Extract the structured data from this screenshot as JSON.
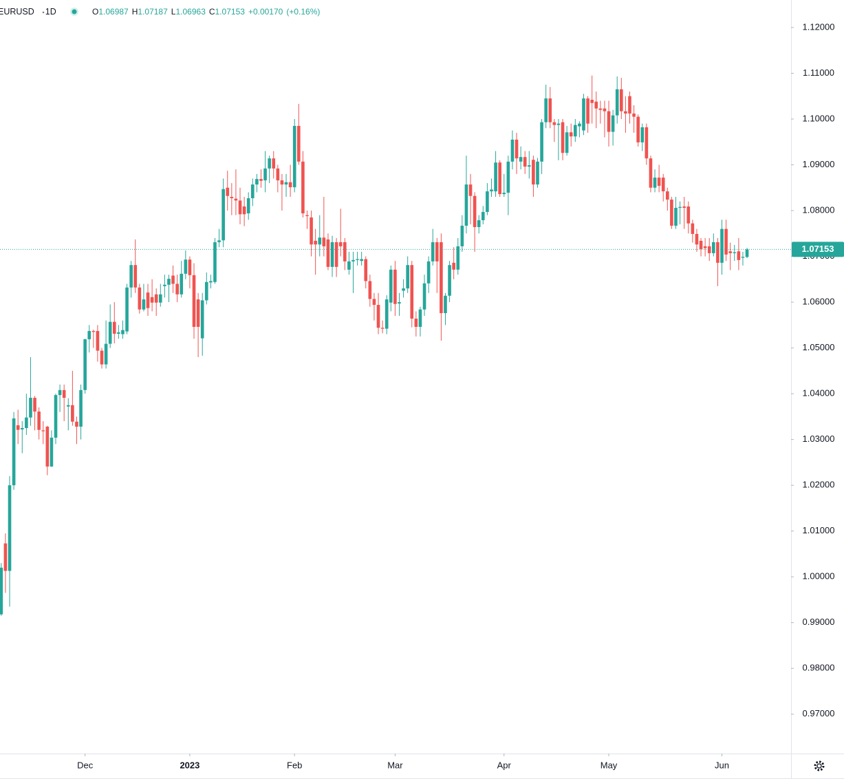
{
  "chart_data": {
    "type": "candlestick",
    "legend": {
      "symbol": "EURUSD",
      "interval": "1D",
      "labels": [
        "O",
        "H",
        "L",
        "C"
      ],
      "values": [
        "1.06987",
        "1.07187",
        "1.06963",
        "1.07153"
      ],
      "change": "+0.00170",
      "change_pct": "(+0.16%)"
    },
    "up_color": "#26a69a",
    "down_color": "#ef5350",
    "last_price": {
      "value": 1.07153,
      "label": "1.07153"
    },
    "ylim": [
      0.9614,
      1.126
    ],
    "yticks": [
      {
        "value": 0.97,
        "label": "0.97000"
      },
      {
        "value": 0.98,
        "label": "0.98000"
      },
      {
        "value": 0.99,
        "label": "0.99000"
      },
      {
        "value": 1.0,
        "label": "1.00000"
      },
      {
        "value": 1.01,
        "label": "1.01000"
      },
      {
        "value": 1.02,
        "label": "1.02000"
      },
      {
        "value": 1.03,
        "label": "1.03000"
      },
      {
        "value": 1.04,
        "label": "1.04000"
      },
      {
        "value": 1.05,
        "label": "1.05000"
      },
      {
        "value": 1.06,
        "label": "1.06000"
      },
      {
        "value": 1.07,
        "label": "1.07000"
      },
      {
        "value": 1.08,
        "label": "1.08000"
      },
      {
        "value": 1.09,
        "label": "1.09000"
      },
      {
        "value": 1.1,
        "label": "1.10000"
      },
      {
        "value": 1.11,
        "label": "1.11000"
      },
      {
        "value": 1.12,
        "label": "1.12000"
      }
    ],
    "xlim": [
      -0.3,
      188.5
    ],
    "xticks": [
      {
        "value": 20,
        "label": "Dec"
      },
      {
        "value": 45,
        "label": "2023"
      },
      {
        "value": 70,
        "label": "Feb"
      },
      {
        "value": 94,
        "label": "Mar"
      },
      {
        "value": 120,
        "label": "Apr"
      },
      {
        "value": 145,
        "label": "May"
      },
      {
        "value": 172,
        "label": "Jun"
      }
    ],
    "candles": [
      [
        0.9918,
        1.003,
        0.9915,
        1.002
      ],
      [
        1.0073,
        1.0095,
        0.9965,
        1.0013
      ],
      [
        1.0013,
        1.022,
        0.9935,
        1.02
      ],
      [
        1.02,
        1.036,
        1.019,
        1.0346
      ],
      [
        1.0331,
        1.0365,
        1.029,
        1.0321
      ],
      [
        1.0322,
        1.034,
        1.027,
        1.0325
      ],
      [
        1.0325,
        1.04,
        1.031,
        1.0348
      ],
      [
        1.0348,
        1.048,
        1.033,
        1.0391
      ],
      [
        1.0391,
        1.0395,
        1.032,
        1.0361
      ],
      [
        1.0361,
        1.037,
        1.03,
        1.0321
      ],
      [
        1.032,
        1.034,
        1.029,
        1.0318
      ],
      [
        1.0328,
        1.033,
        1.0222,
        1.0241
      ],
      [
        1.0241,
        1.032,
        1.024,
        1.0304
      ],
      [
        1.0304,
        1.04,
        1.029,
        1.0397
      ],
      [
        1.0397,
        1.042,
        1.036,
        1.0408
      ],
      [
        1.0408,
        1.042,
        1.034,
        1.0391
      ],
      [
        1.0372,
        1.039,
        1.032,
        1.0375
      ],
      [
        1.0375,
        1.045,
        1.033,
        1.0339
      ],
      [
        1.0339,
        1.035,
        1.029,
        1.0328
      ],
      [
        1.0328,
        1.042,
        1.03,
        1.0408
      ],
      [
        1.0408,
        1.052,
        1.04,
        1.0519
      ],
      [
        1.0519,
        1.055,
        1.049,
        1.0537
      ],
      [
        1.0537,
        1.054,
        1.05,
        1.0535
      ],
      [
        1.0537,
        1.055,
        1.047,
        1.0494
      ],
      [
        1.0494,
        1.05,
        1.0455,
        1.0464
      ],
      [
        1.0464,
        1.056,
        1.0455,
        1.0509
      ],
      [
        1.0509,
        1.0595,
        1.05,
        1.0557
      ],
      [
        1.0557,
        1.06,
        1.051,
        1.0531
      ],
      [
        1.0531,
        1.055,
        1.052,
        1.0534
      ],
      [
        1.053,
        1.056,
        1.052,
        1.0539
      ],
      [
        1.0536,
        1.064,
        1.053,
        1.0632
      ],
      [
        1.0632,
        1.069,
        1.061,
        1.0681
      ],
      [
        1.0681,
        1.0737,
        1.062,
        1.0632
      ],
      [
        1.0632,
        1.064,
        1.0575,
        1.0584
      ],
      [
        1.0584,
        1.064,
        1.058,
        1.0606
      ],
      [
        1.0621,
        1.064,
        1.057,
        1.0587
      ],
      [
        1.0611,
        1.065,
        1.058,
        1.0599
      ],
      [
        1.0617,
        1.063,
        1.057,
        1.0599
      ],
      [
        1.0599,
        1.064,
        1.059,
        1.0617
      ],
      [
        1.0635,
        1.066,
        1.061,
        1.0638
      ],
      [
        1.0638,
        1.066,
        1.06,
        1.0651
      ],
      [
        1.0658,
        1.068,
        1.062,
        1.064
      ],
      [
        1.064,
        1.066,
        1.06,
        1.0617
      ],
      [
        1.0617,
        1.069,
        1.061,
        1.0662
      ],
      [
        1.0662,
        1.0713,
        1.065,
        1.0693
      ],
      [
        1.0693,
        1.07,
        1.063,
        1.0659
      ],
      [
        1.0659,
        1.0685,
        1.052,
        1.0546
      ],
      [
        1.0606,
        1.062,
        1.048,
        1.0546
      ],
      [
        1.0521,
        1.062,
        1.0483,
        1.0604
      ],
      [
        1.0604,
        1.0665,
        1.0595,
        1.0644
      ],
      [
        1.0643,
        1.066,
        1.063,
        1.0646
      ],
      [
        1.0644,
        1.074,
        1.064,
        1.0731
      ],
      [
        1.0731,
        1.076,
        1.072,
        1.0735
      ],
      [
        1.0735,
        1.087,
        1.072,
        1.0847
      ],
      [
        1.085,
        1.0887,
        1.08,
        1.0832
      ],
      [
        1.083,
        1.086,
        1.079,
        1.0827
      ],
      [
        1.0826,
        1.089,
        1.079,
        1.0822
      ],
      [
        1.0822,
        1.085,
        1.077,
        1.0792
      ],
      [
        1.0809,
        1.083,
        1.0766,
        1.0792
      ],
      [
        1.0794,
        1.084,
        1.078,
        1.0827
      ],
      [
        1.0827,
        1.087,
        1.081,
        1.0857
      ],
      [
        1.0857,
        1.088,
        1.084,
        1.0869
      ],
      [
        1.0869,
        1.089,
        1.085,
        1.0865
      ],
      [
        1.0866,
        1.093,
        1.084,
        1.0892
      ],
      [
        1.0892,
        1.092,
        1.086,
        1.0914
      ],
      [
        1.0914,
        1.093,
        1.087,
        1.0892
      ],
      [
        1.0892,
        1.09,
        1.084,
        1.0866
      ],
      [
        1.0866,
        1.088,
        1.08,
        1.0857
      ],
      [
        1.0857,
        1.088,
        1.083,
        1.0862
      ],
      [
        1.0862,
        1.09,
        1.083,
        1.0851
      ],
      [
        1.0851,
        1.1,
        1.084,
        1.0985
      ],
      [
        1.0985,
        1.1033,
        1.09,
        1.0907
      ],
      [
        1.0907,
        1.093,
        1.0785,
        1.0794
      ],
      [
        1.079,
        1.08,
        1.076,
        1.0788
      ],
      [
        1.0785,
        1.08,
        1.07,
        1.0726
      ],
      [
        1.0734,
        1.076,
        1.066,
        1.0726
      ],
      [
        1.0726,
        1.079,
        1.07,
        1.0741
      ],
      [
        1.0741,
        1.083,
        1.07,
        1.0722
      ],
      [
        1.0737,
        1.075,
        1.067,
        1.0677
      ],
      [
        1.0677,
        1.0745,
        1.0655,
        1.0731
      ],
      [
        1.0731,
        1.074,
        1.0655,
        1.0677
      ],
      [
        1.0731,
        1.0804,
        1.07,
        1.0722
      ],
      [
        1.0731,
        1.074,
        1.067,
        1.0689
      ],
      [
        1.0671,
        1.071,
        1.066,
        1.0689
      ],
      [
        1.0689,
        1.071,
        1.062,
        1.0692
      ],
      [
        1.0692,
        1.071,
        1.068,
        1.0694
      ],
      [
        1.069,
        1.071,
        1.068,
        1.0694
      ],
      [
        1.0694,
        1.07,
        1.063,
        1.0646
      ],
      [
        1.0646,
        1.066,
        1.059,
        1.0607
      ],
      [
        1.0607,
        1.062,
        1.056,
        1.0594
      ],
      [
        1.0594,
        1.062,
        1.053,
        1.0544
      ],
      [
        1.0544,
        1.056,
        1.0532,
        1.0542
      ],
      [
        1.0542,
        1.0615,
        1.053,
        1.0606
      ],
      [
        1.0599,
        1.068,
        1.058,
        1.0671
      ],
      [
        1.0671,
        1.069,
        1.057,
        1.0596
      ],
      [
        1.0597,
        1.062,
        1.057,
        1.06
      ],
      [
        1.0625,
        1.065,
        1.061,
        1.063
      ],
      [
        1.063,
        1.07,
        1.062,
        1.0681
      ],
      [
        1.0681,
        1.069,
        1.0545,
        1.0564
      ],
      [
        1.0564,
        1.058,
        1.0525,
        1.0546
      ],
      [
        1.0546,
        1.059,
        1.0525,
        1.0584
      ],
      [
        1.0584,
        1.066,
        1.057,
        1.0641
      ],
      [
        1.0641,
        1.07,
        1.062,
        1.0689
      ],
      [
        1.0689,
        1.076,
        1.068,
        1.0731
      ],
      [
        1.0731,
        1.074,
        1.062,
        1.0689
      ],
      [
        1.0731,
        1.075,
        1.0516,
        1.0576
      ],
      [
        1.0576,
        1.062,
        1.055,
        1.0614
      ],
      [
        1.0614,
        1.069,
        1.06,
        1.0681
      ],
      [
        1.0686,
        1.072,
        1.065,
        1.0671
      ],
      [
        1.0671,
        1.074,
        1.066,
        1.0722
      ],
      [
        1.0722,
        1.079,
        1.071,
        1.0767
      ],
      [
        1.0767,
        1.092,
        1.075,
        1.0857
      ],
      [
        1.0857,
        1.088,
        1.077,
        1.0832
      ],
      [
        1.0832,
        1.084,
        1.071,
        1.0764
      ],
      [
        1.0764,
        1.079,
        1.075,
        1.0779
      ],
      [
        1.0779,
        1.081,
        1.077,
        1.0797
      ],
      [
        1.0797,
        1.086,
        1.079,
        1.0842
      ],
      [
        1.0842,
        1.087,
        1.083,
        1.0846
      ],
      [
        1.0842,
        1.093,
        1.083,
        1.0905
      ],
      [
        1.0905,
        1.091,
        1.083,
        1.0836
      ],
      [
        1.0836,
        1.088,
        1.083,
        1.0839
      ],
      [
        1.0839,
        1.092,
        1.079,
        1.0907
      ],
      [
        1.0907,
        1.0975,
        1.089,
        1.0955
      ],
      [
        1.0955,
        1.097,
        1.088,
        1.0914
      ],
      [
        1.0907,
        1.094,
        1.089,
        1.0917
      ],
      [
        1.0917,
        1.093,
        1.088,
        1.0896
      ],
      [
        1.0896,
        1.093,
        1.087,
        1.0899
      ],
      [
        1.0911,
        1.092,
        1.083,
        1.0857
      ],
      [
        1.0857,
        1.0915,
        1.085,
        1.0907
      ],
      [
        1.0907,
        1.1,
        1.088,
        1.0993
      ],
      [
        1.0993,
        1.1075,
        1.098,
        1.1045
      ],
      [
        1.1045,
        1.107,
        1.098,
        1.0993
      ],
      [
        1.0993,
        1.1,
        1.095,
        1.0987
      ],
      [
        1.0987,
        1.1,
        1.091,
        1.099
      ],
      [
        1.0993,
        1.1,
        1.091,
        1.0926
      ],
      [
        1.0926,
        1.0985,
        1.092,
        1.0971
      ],
      [
        1.0971,
        1.099,
        1.094,
        1.0962
      ],
      [
        1.0962,
        1.1,
        1.095,
        1.0987
      ],
      [
        1.0984,
        1.0995,
        1.096,
        1.099
      ],
      [
        1.0975,
        1.1055,
        1.0965,
        1.1045
      ],
      [
        1.1045,
        1.105,
        1.097,
        1.099
      ],
      [
        1.1042,
        1.1095,
        1.099,
        1.1035
      ],
      [
        1.1038,
        1.106,
        1.098,
        1.1023
      ],
      [
        1.1023,
        1.104,
        1.099,
        1.102
      ],
      [
        1.1023,
        1.104,
        1.096,
        1.1017
      ],
      [
        1.1017,
        1.104,
        1.094,
        1.0972
      ],
      [
        1.0972,
        1.102,
        1.0942,
        1.1008
      ],
      [
        1.1008,
        1.1093,
        1.099,
        1.1065
      ],
      [
        1.1065,
        1.109,
        1.1,
        1.1017
      ],
      [
        1.1017,
        1.105,
        1.097,
        1.1012
      ],
      [
        1.105,
        1.106,
        1.099,
        1.1012
      ],
      [
        1.1012,
        1.103,
        1.097,
        1.1005
      ],
      [
        1.1005,
        1.101,
        1.094,
        1.0949
      ],
      [
        1.0949,
        1.099,
        1.093,
        1.0982
      ],
      [
        1.0982,
        1.099,
        1.09,
        1.0914
      ],
      [
        1.0914,
        1.092,
        1.084,
        1.085
      ],
      [
        1.085,
        1.089,
        1.084,
        1.0872
      ],
      [
        1.0872,
        1.09,
        1.084,
        1.0854
      ],
      [
        1.0872,
        1.088,
        1.082,
        1.0842
      ],
      [
        1.0842,
        1.085,
        1.08,
        1.0824
      ],
      [
        1.0824,
        1.083,
        1.076,
        1.0767
      ],
      [
        1.0767,
        1.083,
        1.076,
        1.0806
      ],
      [
        1.0806,
        1.082,
        1.077,
        1.0808
      ],
      [
        1.0809,
        1.083,
        1.076,
        1.0806
      ],
      [
        1.0809,
        1.082,
        1.075,
        1.0772
      ],
      [
        1.0772,
        1.078,
        1.073,
        1.0749
      ],
      [
        1.0749,
        1.076,
        1.071,
        1.0726
      ],
      [
        1.0734,
        1.074,
        1.07,
        1.0716
      ],
      [
        1.0722,
        1.074,
        1.07,
        1.0718
      ],
      [
        1.0722,
        1.074,
        1.069,
        1.0707
      ],
      [
        1.0707,
        1.075,
        1.07,
        1.0731
      ],
      [
        1.0731,
        1.074,
        1.0635,
        1.0686
      ],
      [
        1.0686,
        1.078,
        1.066,
        1.076
      ],
      [
        1.076,
        1.078,
        1.069,
        1.0704
      ],
      [
        1.0711,
        1.073,
        1.067,
        1.0707
      ],
      [
        1.0707,
        1.0725,
        1.069,
        1.0709
      ],
      [
        1.0711,
        1.074,
        1.067,
        1.0692
      ],
      [
        1.0697,
        1.071,
        1.068,
        1.0699
      ],
      [
        1.06987,
        1.07187,
        1.06963,
        1.07153
      ]
    ]
  }
}
